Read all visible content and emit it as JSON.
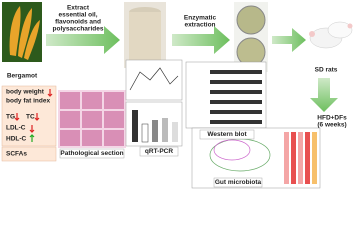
{
  "labels": {
    "bergamot": "Bergamot",
    "extract": [
      "Extract",
      "essential oil,",
      "flavonoids and",
      "polysaccharides"
    ],
    "enzymatic": [
      "Enzymatic",
      "extraction"
    ],
    "rats": "SD rats",
    "diet": [
      "HFD+DFs",
      "(6 weeks)"
    ],
    "western": "Western blot",
    "pcr": "qRT-PCR",
    "patho": "Pathological section",
    "gut": "Gut microbiota"
  },
  "indices": {
    "body_weight": "body weight",
    "body_fat": "body fat index",
    "tg": "TG",
    "tc": "TC",
    "ldl": "LDL-C",
    "hdl": "HDL-C",
    "scfa": "SCFAs"
  }
}
